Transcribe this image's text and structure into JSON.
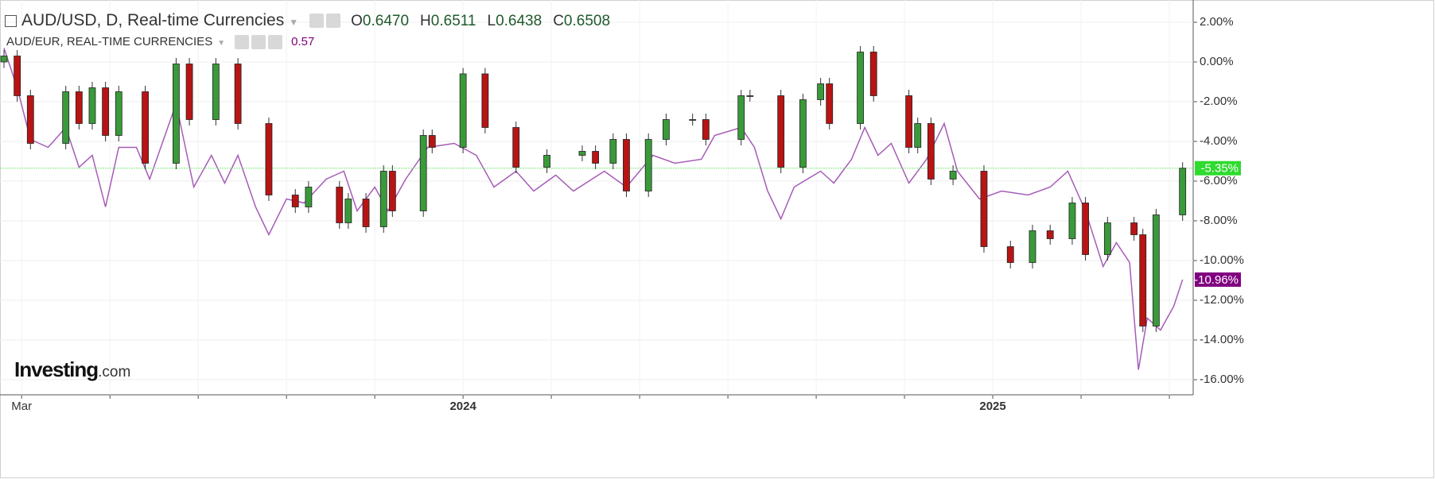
{
  "chart_data": {
    "type": "candlestick",
    "title": "AUD/USD, D, Real-time Currencies",
    "ohlc_legend": [
      {
        "key": "O",
        "value": "0.6470"
      },
      {
        "key": "H",
        "value": "0.6511"
      },
      {
        "key": "L",
        "value": "0.6438"
      },
      {
        "key": "C",
        "value": "0.6508"
      }
    ],
    "xlim": [
      -0.49,
      26.54
    ],
    "ylim": [
      -16.76,
      3.12
    ],
    "xticks": [
      {
        "value": 0,
        "label": "Mar"
      },
      {
        "value": 2,
        "label": null
      },
      {
        "value": 4,
        "label": null
      },
      {
        "value": 6,
        "label": null
      },
      {
        "value": 8,
        "label": null
      },
      {
        "value": 10,
        "label": "2024"
      },
      {
        "value": 12,
        "label": null
      },
      {
        "value": 14,
        "label": null
      },
      {
        "value": 16,
        "label": null
      },
      {
        "value": 18,
        "label": null
      },
      {
        "value": 20,
        "label": null
      },
      {
        "value": 22,
        "label": "2025"
      },
      {
        "value": 24,
        "label": null
      },
      {
        "value": 26,
        "label": null
      }
    ],
    "yticks": [
      {
        "value": 2,
        "label": "2.00%"
      },
      {
        "value": 0,
        "label": "0.00%"
      },
      {
        "value": -2,
        "label": "-2.00%"
      },
      {
        "value": -4,
        "label": "-4.00%"
      },
      {
        "value": -6,
        "label": "-6.00%"
      },
      {
        "value": -8,
        "label": "-8.00%"
      },
      {
        "value": -10,
        "label": "-10.00%"
      },
      {
        "value": -12,
        "label": "-12.00%"
      },
      {
        "value": -14,
        "label": "-14.00%"
      },
      {
        "value": -16,
        "label": "-16.00%"
      }
    ],
    "grid": true,
    "series": [
      {
        "type": "candlestick",
        "up_color": "#3a9a3a",
        "down_color": "#b81414",
        "label_color": "#2edb2e",
        "last_label": "-5.35%",
        "x": [
          -0.4,
          -0.1,
          0.2,
          1.0,
          1.3,
          1.6,
          1.9,
          2.2,
          2.8,
          3.5,
          3.8,
          4.4,
          4.9,
          5.6,
          6.2,
          6.5,
          7.2,
          7.4,
          7.8,
          8.2,
          8.4,
          9.1,
          9.3,
          10.0,
          10.5,
          11.2,
          11.9,
          12.7,
          13.0,
          13.4,
          13.7,
          14.2,
          14.6,
          15.2,
          15.5,
          16.3,
          16.5,
          17.2,
          17.7,
          18.1,
          18.3,
          19.0,
          19.3,
          20.1,
          20.3,
          20.6,
          21.1,
          21.8,
          22.4,
          22.9,
          23.3,
          23.8,
          24.1,
          24.6,
          25.2,
          25.4,
          25.7,
          26.3
        ],
        "open": [
          0,
          0.3,
          -1.7,
          -4.1,
          -1.5,
          -3.1,
          -1.3,
          -3.7,
          -1.5,
          -5.1,
          -0.1,
          -2.9,
          -0.1,
          -3.1,
          -6.7,
          -7.3,
          -6.3,
          -8.1,
          -6.9,
          -8.3,
          -5.5,
          -7.5,
          -3.7,
          -4.3,
          -0.6,
          -3.3,
          -5.3,
          -4.7,
          -4.5,
          -5.1,
          -3.9,
          -6.5,
          -3.9,
          -2.9,
          -2.9,
          -3.9,
          -1.7,
          -1.7,
          -5.3,
          -1.9,
          -1.1,
          -3.1,
          0.5,
          -1.7,
          -4.3,
          -3.1,
          -5.9,
          -5.5,
          -9.3,
          -10.1,
          -8.5,
          -8.9,
          -7.1,
          -9.7,
          -8.1,
          -8.7,
          -13.3,
          -7.7
        ],
        "high": [
          0.6,
          0.6,
          -1.4,
          -1.2,
          -1.2,
          -1.0,
          -1.0,
          -1.2,
          -1.2,
          0.2,
          0.2,
          0.2,
          0.2,
          -2.8,
          -6.4,
          -6.0,
          -6.0,
          -6.6,
          -6.6,
          -5.2,
          -5.2,
          -3.4,
          -3.4,
          -0.3,
          -0.3,
          -3.0,
          -4.4,
          -4.2,
          -4.2,
          -3.6,
          -3.6,
          -3.6,
          -2.6,
          -2.6,
          -2.6,
          -1.4,
          -1.4,
          -1.4,
          -1.6,
          -0.8,
          -0.8,
          0.8,
          0.8,
          -1.4,
          -2.8,
          -2.8,
          -5.2,
          -5.2,
          -9.0,
          -8.2,
          -8.2,
          -6.8,
          -6.8,
          -7.8,
          -7.8,
          -8.4,
          -7.4,
          -5.05
        ],
        "low": [
          -0.3,
          -2.0,
          -4.4,
          -4.4,
          -3.4,
          -3.4,
          -4.0,
          -4.0,
          -5.4,
          -5.4,
          -3.2,
          -3.2,
          -3.4,
          -7.0,
          -7.6,
          -7.6,
          -8.4,
          -8.4,
          -8.6,
          -8.6,
          -7.8,
          -7.8,
          -4.6,
          -4.6,
          -3.6,
          -5.6,
          -5.6,
          -5.0,
          -5.4,
          -5.4,
          -6.8,
          -6.8,
          -4.2,
          -3.2,
          -4.2,
          -4.2,
          -2.0,
          -5.6,
          -5.6,
          -2.2,
          -3.4,
          -3.4,
          -2.0,
          -4.6,
          -4.6,
          -6.2,
          -6.2,
          -9.6,
          -10.4,
          -10.4,
          -9.2,
          -9.2,
          -10.0,
          -10.0,
          -9.0,
          -13.6,
          -13.6,
          -8.0
        ],
        "close": [
          0.3,
          -1.7,
          -4.1,
          -1.5,
          -3.1,
          -1.3,
          -3.7,
          -1.5,
          -5.1,
          -0.1,
          -2.9,
          -0.1,
          -3.1,
          -6.7,
          -7.3,
          -6.3,
          -8.1,
          -6.9,
          -8.3,
          -5.5,
          -7.5,
          -3.7,
          -4.3,
          -0.6,
          -3.3,
          -5.3,
          -4.7,
          -4.5,
          -5.1,
          -3.9,
          -6.5,
          -3.9,
          -2.9,
          -2.9,
          -3.9,
          -1.7,
          -1.7,
          -5.3,
          -1.9,
          -1.1,
          -3.1,
          0.5,
          -1.7,
          -4.3,
          -3.1,
          -5.9,
          -5.5,
          -9.3,
          -10.1,
          -8.5,
          -8.9,
          -7.1,
          -9.7,
          -8.1,
          -8.7,
          -13.3,
          -7.7,
          -5.35
        ]
      },
      {
        "type": "line",
        "name": "AUD/EUR, REAL-TIME CURRENCIES",
        "legend_value": "0.57",
        "color": "#a65cb8",
        "label_color": "#800080",
        "last_label": "-10.96%",
        "x": [
          -0.4,
          -0.1,
          0.2,
          0.6,
          1.0,
          1.3,
          1.6,
          1.9,
          2.2,
          2.6,
          2.9,
          3.5,
          3.9,
          4.3,
          4.6,
          4.9,
          5.3,
          5.6,
          6.0,
          6.4,
          6.9,
          7.3,
          7.6,
          8.0,
          8.3,
          8.7,
          9.2,
          9.8,
          10.3,
          10.7,
          11.2,
          11.6,
          12.1,
          12.5,
          13.2,
          13.7,
          14.3,
          14.8,
          15.4,
          15.7,
          16.3,
          16.6,
          16.9,
          17.2,
          17.5,
          18.1,
          18.4,
          18.8,
          19.1,
          19.4,
          19.7,
          20.1,
          20.5,
          20.9,
          21.2,
          21.7,
          22.2,
          22.8,
          23.3,
          23.7,
          24.1,
          24.5,
          24.8,
          25.1,
          25.3,
          25.5,
          25.8,
          26.1,
          26.3
        ],
        "values": [
          0.7,
          -1.3,
          -3.9,
          -4.3,
          -3.3,
          -5.3,
          -4.7,
          -7.3,
          -4.3,
          -4.3,
          -5.9,
          -2.1,
          -6.3,
          -4.7,
          -6.1,
          -4.7,
          -7.3,
          -8.7,
          -6.9,
          -7.1,
          -5.9,
          -5.5,
          -7.5,
          -6.3,
          -7.5,
          -5.9,
          -4.3,
          -4.1,
          -4.7,
          -6.3,
          -5.5,
          -6.5,
          -5.7,
          -6.5,
          -5.5,
          -6.3,
          -4.7,
          -5.1,
          -4.9,
          -3.7,
          -3.3,
          -4.3,
          -6.5,
          -7.9,
          -6.3,
          -5.5,
          -6.1,
          -4.9,
          -3.3,
          -4.7,
          -4.1,
          -6.1,
          -4.9,
          -3.1,
          -5.5,
          -6.9,
          -6.5,
          -6.7,
          -6.3,
          -5.5,
          -7.5,
          -10.3,
          -9.1,
          -10.1,
          -15.5,
          -12.9,
          -13.5,
          -12.3,
          -10.96
        ]
      }
    ]
  },
  "logo": {
    "brand": "Investing",
    "suffix": ".com"
  }
}
